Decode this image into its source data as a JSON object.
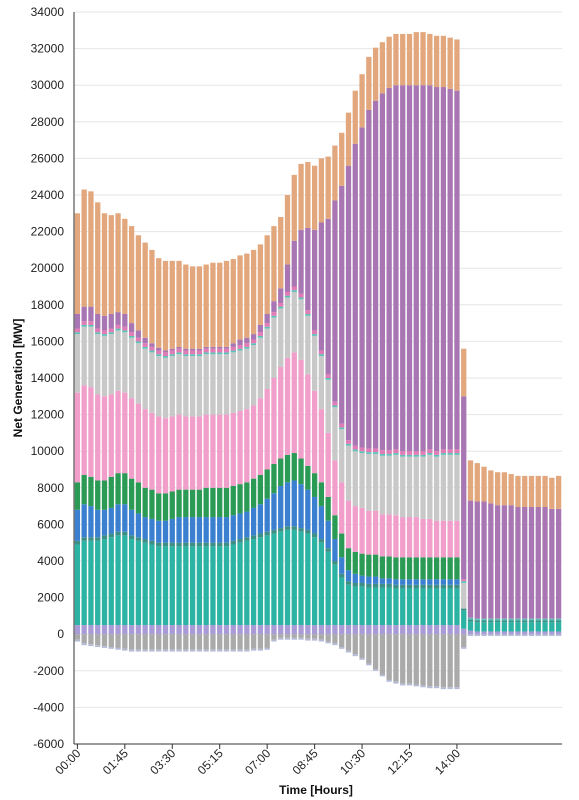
{
  "chart_data": {
    "type": "bar",
    "stacked": true,
    "xlabel": "Time [Hours]",
    "ylabel": "Net Generation [MW]",
    "ylim": [
      -6000,
      34000
    ],
    "y_ticks": [
      -6000,
      -4000,
      -2000,
      0,
      2000,
      4000,
      6000,
      8000,
      10000,
      12000,
      14000,
      16000,
      18000,
      20000,
      22000,
      24000,
      26000,
      28000,
      30000,
      32000,
      34000
    ],
    "x_tick_labels": [
      "00:00",
      "01:45",
      "03:30",
      "05:15",
      "07:00",
      "08:45",
      "10:30",
      "12:15",
      "14:00"
    ],
    "x_tick_every": 7,
    "grid": true,
    "interval_minutes": 15,
    "points": 72,
    "colors": {
      "purple_base": "#a99bd6",
      "teal": "#2bb3a4",
      "dark_teal": "#3d8f86",
      "blue": "#3b7fd0",
      "green": "#2a9a55",
      "pink": "#f19ecb",
      "light_gray": "#c8c8c8",
      "small_teal": "#5cc2b8",
      "small_pink": "#e07bb5",
      "purple_solar": "#a877b3",
      "tan": "#e2a77c",
      "negative_gray": "#aaaaaa",
      "light_blue_neg": "#b4bbd6"
    },
    "series": [
      {
        "key": "neg_gray",
        "color": "#aaaaaa",
        "values": [
          -300,
          -500,
          -550,
          -600,
          -650,
          -700,
          -750,
          -800,
          -850,
          -850,
          -850,
          -850,
          -850,
          -850,
          -850,
          -850,
          -850,
          -850,
          -850,
          -850,
          -850,
          -850,
          -850,
          -850,
          -850,
          -850,
          -800,
          -800,
          -750,
          -300,
          -200,
          -200,
          -200,
          -200,
          -250,
          -250,
          -300,
          -400,
          -500,
          -700,
          -900,
          -1100,
          -1300,
          -1600,
          -1900,
          -2200,
          -2500,
          -2600,
          -2700,
          -2700,
          -2750,
          -2800,
          -2850,
          -2850,
          -2900,
          -2900,
          -2900,
          -700,
          0,
          0,
          0,
          0,
          0,
          0,
          0,
          0,
          0,
          0,
          0,
          0,
          0,
          0
        ]
      },
      {
        "key": "neg_lavender",
        "color": "#b4bbd6",
        "values": [
          -100,
          -100,
          -100,
          -100,
          -100,
          -100,
          -100,
          -100,
          -100,
          -100,
          -100,
          -100,
          -100,
          -100,
          -100,
          -100,
          -100,
          -100,
          -100,
          -100,
          -100,
          -100,
          -100,
          -100,
          -100,
          -100,
          -100,
          -100,
          -100,
          -100,
          -100,
          -100,
          -100,
          -100,
          -100,
          -100,
          -100,
          -100,
          -100,
          -100,
          -100,
          -100,
          -100,
          -100,
          -100,
          -100,
          -100,
          -100,
          -100,
          -100,
          -100,
          -100,
          -100,
          -100,
          -100,
          -100,
          -100,
          -100,
          -100,
          -100,
          -100,
          -100,
          -100,
          -100,
          -100,
          -100,
          -100,
          -100,
          -100,
          -100,
          -100,
          -100
        ]
      },
      {
        "key": "purple_base",
        "color": "#a99bd6",
        "values": [
          500,
          500,
          500,
          500,
          500,
          500,
          500,
          500,
          500,
          500,
          500,
          500,
          500,
          500,
          500,
          500,
          500,
          500,
          500,
          500,
          500,
          500,
          500,
          500,
          500,
          500,
          500,
          500,
          500,
          500,
          500,
          500,
          500,
          500,
          500,
          500,
          500,
          500,
          500,
          500,
          500,
          500,
          500,
          500,
          500,
          500,
          500,
          500,
          500,
          500,
          500,
          500,
          500,
          500,
          500,
          500,
          500,
          300,
          200,
          150,
          150,
          150,
          150,
          150,
          150,
          150,
          150,
          150,
          150,
          150,
          150,
          150
        ]
      },
      {
        "key": "teal",
        "color": "#2bb3a4",
        "values": [
          4400,
          4600,
          4600,
          4600,
          4700,
          4800,
          4900,
          4900,
          4700,
          4600,
          4500,
          4400,
          4300,
          4300,
          4300,
          4300,
          4300,
          4300,
          4300,
          4300,
          4300,
          4300,
          4300,
          4400,
          4500,
          4600,
          4700,
          4800,
          4900,
          5000,
          5100,
          5200,
          5200,
          5100,
          5000,
          4800,
          4500,
          4000,
          3300,
          2600,
          2200,
          2100,
          2100,
          2050,
          2050,
          2050,
          2050,
          2000,
          2000,
          2000,
          2000,
          2000,
          2000,
          2000,
          2000,
          2000,
          2000,
          1000,
          500,
          500,
          500,
          500,
          500,
          500,
          500,
          500,
          500,
          500,
          500,
          500,
          500,
          500
        ]
      },
      {
        "key": "dark_teal",
        "color": "#3d8f86",
        "values": [
          200,
          200,
          200,
          200,
          200,
          200,
          200,
          200,
          200,
          200,
          200,
          200,
          200,
          200,
          200,
          200,
          200,
          200,
          200,
          200,
          200,
          200,
          200,
          200,
          200,
          200,
          200,
          200,
          200,
          200,
          200,
          200,
          200,
          200,
          200,
          200,
          200,
          200,
          200,
          200,
          200,
          200,
          200,
          200,
          200,
          200,
          200,
          200,
          200,
          200,
          200,
          200,
          200,
          200,
          200,
          200,
          200,
          100,
          100,
          100,
          100,
          100,
          100,
          100,
          100,
          100,
          100,
          100,
          100,
          100,
          100,
          100
        ]
      },
      {
        "key": "blue",
        "color": "#3b7fd0",
        "values": [
          1700,
          1800,
          1700,
          1500,
          1400,
          1400,
          1500,
          1500,
          1400,
          1300,
          1200,
          1200,
          1200,
          1200,
          1300,
          1400,
          1400,
          1400,
          1400,
          1400,
          1400,
          1400,
          1400,
          1400,
          1400,
          1400,
          1500,
          1600,
          1800,
          2000,
          2300,
          2400,
          2500,
          2400,
          2200,
          2000,
          1800,
          1500,
          1200,
          900,
          600,
          500,
          400,
          400,
          400,
          300,
          300,
          300,
          300,
          300,
          300,
          300,
          300,
          300,
          300,
          300,
          300,
          0,
          0,
          0,
          0,
          0,
          0,
          0,
          0,
          0,
          0,
          0,
          0,
          0,
          0,
          0
        ]
      },
      {
        "key": "green",
        "color": "#2a9a55",
        "values": [
          1500,
          1600,
          1600,
          1600,
          1600,
          1700,
          1700,
          1700,
          1700,
          1700,
          1600,
          1600,
          1500,
          1500,
          1500,
          1500,
          1500,
          1500,
          1500,
          1600,
          1600,
          1600,
          1600,
          1600,
          1600,
          1600,
          1600,
          1600,
          1600,
          1600,
          1500,
          1500,
          1500,
          1400,
          1300,
          1300,
          1300,
          1300,
          1300,
          1300,
          1200,
          1200,
          1200,
          1200,
          1200,
          1200,
          1200,
          1200,
          1200,
          1200,
          1200,
          1200,
          1200,
          1200,
          1200,
          1200,
          1200,
          0,
          0,
          0,
          0,
          0,
          0,
          0,
          0,
          0,
          0,
          0,
          0,
          0,
          0,
          0
        ]
      },
      {
        "key": "pink",
        "color": "#f19ecb",
        "values": [
          4900,
          4900,
          4900,
          4700,
          4600,
          4500,
          4500,
          4400,
          4400,
          4300,
          4300,
          4200,
          4200,
          4100,
          4100,
          4100,
          4000,
          4000,
          4000,
          4000,
          4000,
          4000,
          4000,
          4000,
          4000,
          4000,
          4000,
          4200,
          4400,
          4700,
          5000,
          5300,
          5500,
          5400,
          5000,
          4500,
          4000,
          3500,
          3000,
          2800,
          2600,
          2500,
          2500,
          2400,
          2400,
          2300,
          2300,
          2300,
          2200,
          2200,
          2200,
          2100,
          2100,
          2000,
          2000,
          2000,
          2000,
          0,
          0,
          0,
          0,
          0,
          0,
          0,
          0,
          0,
          0,
          0,
          0,
          0,
          0,
          0
        ]
      },
      {
        "key": "light_gray",
        "color": "#c8c8c8",
        "values": [
          3200,
          3200,
          3300,
          3300,
          3300,
          3300,
          3300,
          3300,
          3300,
          3300,
          3300,
          3300,
          3300,
          3300,
          3300,
          3300,
          3300,
          3300,
          3300,
          3300,
          3300,
          3300,
          3300,
          3300,
          3300,
          3300,
          3300,
          3300,
          3300,
          3300,
          3200,
          3300,
          3300,
          3300,
          3200,
          3000,
          2900,
          2900,
          2900,
          2900,
          3000,
          3000,
          3000,
          3100,
          3100,
          3200,
          3200,
          3300,
          3300,
          3300,
          3300,
          3400,
          3500,
          3500,
          3600,
          3600,
          3600,
          1400,
          0,
          0,
          0,
          0,
          0,
          0,
          0,
          0,
          0,
          0,
          0,
          0,
          0,
          0
        ]
      },
      {
        "key": "small_teal",
        "color": "#5cc2b8",
        "values": [
          100,
          100,
          100,
          100,
          100,
          100,
          100,
          100,
          100,
          100,
          100,
          100,
          100,
          100,
          100,
          100,
          100,
          100,
          100,
          100,
          100,
          100,
          100,
          100,
          100,
          100,
          100,
          100,
          100,
          100,
          100,
          100,
          100,
          100,
          100,
          100,
          100,
          100,
          100,
          100,
          100,
          100,
          100,
          100,
          100,
          100,
          100,
          100,
          100,
          100,
          100,
          100,
          100,
          100,
          100,
          100,
          100,
          100,
          100,
          100,
          100,
          100,
          100,
          100,
          100,
          100,
          100,
          100,
          100,
          100,
          100,
          100
        ]
      },
      {
        "key": "small_pink",
        "color": "#e07bb5",
        "values": [
          200,
          200,
          200,
          200,
          200,
          200,
          200,
          200,
          200,
          200,
          200,
          200,
          200,
          200,
          200,
          200,
          200,
          200,
          200,
          200,
          200,
          200,
          200,
          200,
          200,
          200,
          200,
          200,
          200,
          200,
          200,
          200,
          200,
          200,
          200,
          200,
          200,
          200,
          200,
          200,
          200,
          200,
          200,
          200,
          200,
          200,
          200,
          200,
          200,
          200,
          200,
          200,
          200,
          200,
          200,
          200,
          200,
          100,
          0,
          0,
          0,
          0,
          0,
          0,
          0,
          0,
          0,
          0,
          0,
          0,
          0,
          0
        ]
      },
      {
        "key": "purple_solar",
        "color": "#a877b3",
        "values": [
          800,
          800,
          800,
          800,
          800,
          800,
          700,
          700,
          500,
          400,
          300,
          200,
          150,
          100,
          100,
          100,
          100,
          100,
          100,
          100,
          100,
          100,
          100,
          200,
          300,
          300,
          300,
          400,
          500,
          600,
          800,
          1500,
          2500,
          3500,
          4500,
          5500,
          7000,
          8500,
          11000,
          13000,
          15000,
          16500,
          17500,
          18500,
          19000,
          19500,
          19800,
          19900,
          20000,
          20000,
          20000,
          20000,
          19900,
          19900,
          19800,
          19700,
          19600,
          10000,
          6400,
          6400,
          6400,
          6300,
          6200,
          6200,
          6200,
          6100,
          6100,
          6100,
          6100,
          6100,
          6000,
          6000
        ]
      },
      {
        "key": "tan",
        "color": "#e2a77c",
        "values": [
          5500,
          6400,
          6300,
          6100,
          5600,
          5400,
          5400,
          5200,
          5300,
          5200,
          5200,
          5100,
          4900,
          4900,
          4800,
          4700,
          4600,
          4500,
          4500,
          4500,
          4600,
          4600,
          4700,
          4600,
          4600,
          4600,
          4600,
          4400,
          4300,
          4100,
          3900,
          3800,
          3600,
          3600,
          3600,
          3500,
          3500,
          3400,
          3000,
          2900,
          2900,
          2900,
          2900,
          2900,
          2900,
          2800,
          2800,
          2800,
          2800,
          2800,
          2900,
          2900,
          2800,
          2800,
          2800,
          2800,
          2800,
          2600,
          2200,
          2100,
          1900,
          1800,
          1800,
          1800,
          1700,
          1700,
          1700,
          1700,
          1700,
          1700,
          1700,
          1800
        ]
      }
    ]
  }
}
